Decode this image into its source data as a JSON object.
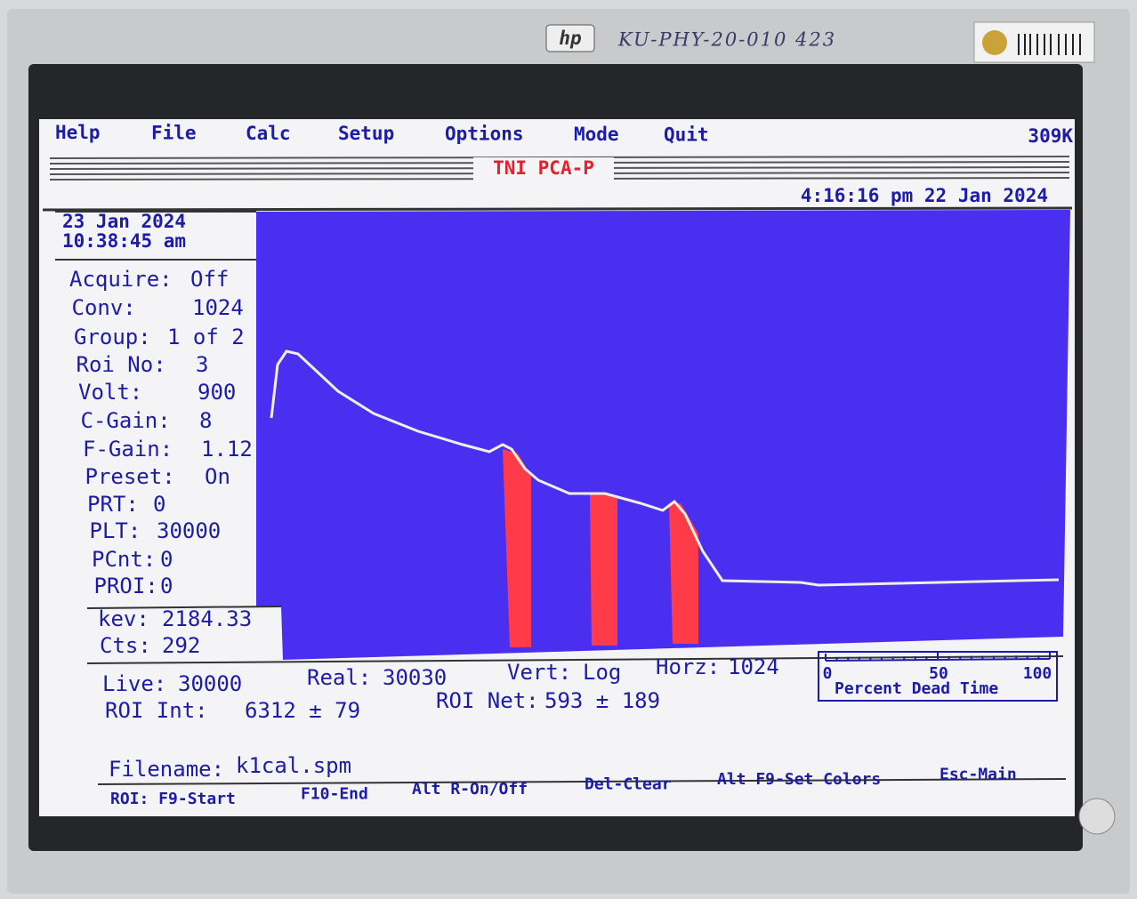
{
  "monitor": {
    "brand": "hp",
    "asset_label": "KU-PHY-20-010 423"
  },
  "menu": {
    "items": [
      "Help",
      "File",
      "Calc",
      "Setup",
      "Options",
      "Mode",
      "Quit"
    ],
    "memory": "309K"
  },
  "header": {
    "title": "TNI PCA-P",
    "clock": "4:16:16 pm 22 Jan 2024"
  },
  "panel": {
    "date": "23 Jan 2024",
    "time": "10:38:45 am",
    "status": [
      {
        "label": "Acquire:",
        "value": "Off"
      },
      {
        "label": "Conv:",
        "value": "1024"
      },
      {
        "label": "Group:",
        "value": "1 of 2"
      },
      {
        "label": "Roi No:",
        "value": "3"
      },
      {
        "label": "Volt:",
        "value": "900"
      },
      {
        "label": "C-Gain:",
        "value": "8"
      },
      {
        "label": "F-Gain:",
        "value": "1.12"
      },
      {
        "label": "Preset:",
        "value": "On"
      },
      {
        "label": "PRT:",
        "value": "0"
      },
      {
        "label": "PLT:",
        "value": "30000"
      },
      {
        "label": "PCnt:",
        "value": "0"
      },
      {
        "label": "PROI:",
        "value": "0"
      }
    ],
    "cursor": [
      {
        "label": "kev:",
        "value": "2184.33"
      },
      {
        "label": "Cts:",
        "value": "292"
      }
    ]
  },
  "readout": [
    {
      "label": "Live:",
      "value": "30000"
    },
    {
      "label": "Real:",
      "value": "30030"
    },
    {
      "label": "Vert:",
      "value": "Log"
    },
    {
      "label": "Horz:",
      "value": "1024"
    },
    {
      "label": "ROI Int:",
      "value": "6312 ± 79"
    },
    {
      "label": "ROI Net:",
      "value": "593 ± 189"
    }
  ],
  "dead_time": {
    "ticks": [
      "0",
      "50",
      "100"
    ],
    "caption": "Percent Dead Time"
  },
  "file": {
    "label": "Filename:",
    "value": "k1cal.spm"
  },
  "footer": [
    "ROI: F9-Start",
    "F10-End",
    "Alt R-On/Off",
    "Del-Clear",
    "Alt F9-Set Colors",
    "Esc-Main"
  ]
}
